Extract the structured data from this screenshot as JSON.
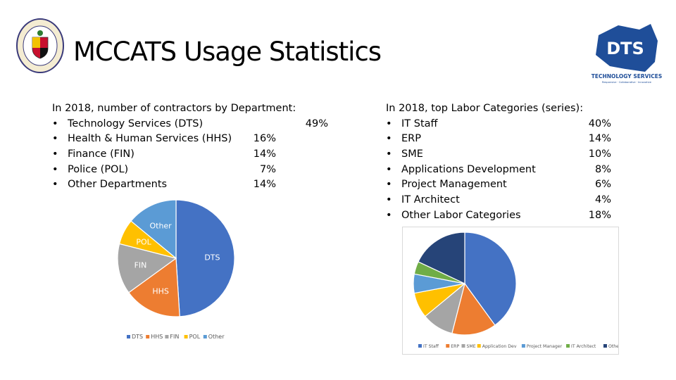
{
  "slide": {
    "title": "MCCATS Usage Statistics"
  },
  "seal": {
    "text_top": "MONTGOMERY COUNTY",
    "text_bottom": "MARYLAND"
  },
  "logo": {
    "mark": "DTS",
    "name": "TECHNOLOGY SERVICES",
    "tagline": "Responsive · Collaborative · Innovative"
  },
  "left_list": {
    "heading": "In 2018, number of contractors by Department:",
    "items": [
      {
        "label": "Technology Services (DTS)",
        "value": "49%"
      },
      {
        "label": "Health & Human Services (HHS)",
        "value": "16%"
      },
      {
        "label": "Finance (FIN)",
        "value": "14%"
      },
      {
        "label": "Police (POL)",
        "value": "7%"
      },
      {
        "label": "Other Departments",
        "value": "14%"
      }
    ]
  },
  "right_list": {
    "heading": "In 2018, top Labor Categories (series):",
    "items": [
      {
        "label": "IT Staff",
        "value": "40%"
      },
      {
        "label": "ERP",
        "value": "14%"
      },
      {
        "label": "SME",
        "value": "10%"
      },
      {
        "label": "Applications Development",
        "value": "8%"
      },
      {
        "label": "Project Management",
        "value": "6%"
      },
      {
        "label": "IT Architect",
        "value": "4%"
      },
      {
        "label": "Other Labor Categories",
        "value": "18%"
      }
    ]
  },
  "chart_data": [
    {
      "type": "pie",
      "title": "",
      "categories": [
        "DTS",
        "HHS",
        "FIN",
        "POL",
        "Other"
      ],
      "values": [
        49,
        16,
        14,
        7,
        14
      ],
      "colors": [
        "#4472c4",
        "#ed7d31",
        "#a5a5a5",
        "#ffc000",
        "#5b9bd5"
      ],
      "slice_labels": [
        "DTS",
        "HHS",
        "FIN",
        "POL",
        "Other"
      ],
      "legend": [
        "DTS",
        "HHS",
        "FIN",
        "POL",
        "Other"
      ],
      "legend_position": "bottom"
    },
    {
      "type": "pie",
      "title": "",
      "categories": [
        "IT Staff",
        "ERP",
        "SME",
        "Application Dev",
        "Project Manager",
        "IT Architect",
        "Other"
      ],
      "values": [
        40,
        14,
        10,
        8,
        6,
        4,
        18
      ],
      "colors": [
        "#4472c4",
        "#ed7d31",
        "#a5a5a5",
        "#ffc000",
        "#5b9bd5",
        "#70ad47",
        "#264478"
      ],
      "legend": [
        "IT Staff",
        "ERP",
        "SME",
        "Application Dev",
        "Project Manager",
        "IT Architect",
        "Other"
      ],
      "legend_position": "bottom"
    }
  ]
}
